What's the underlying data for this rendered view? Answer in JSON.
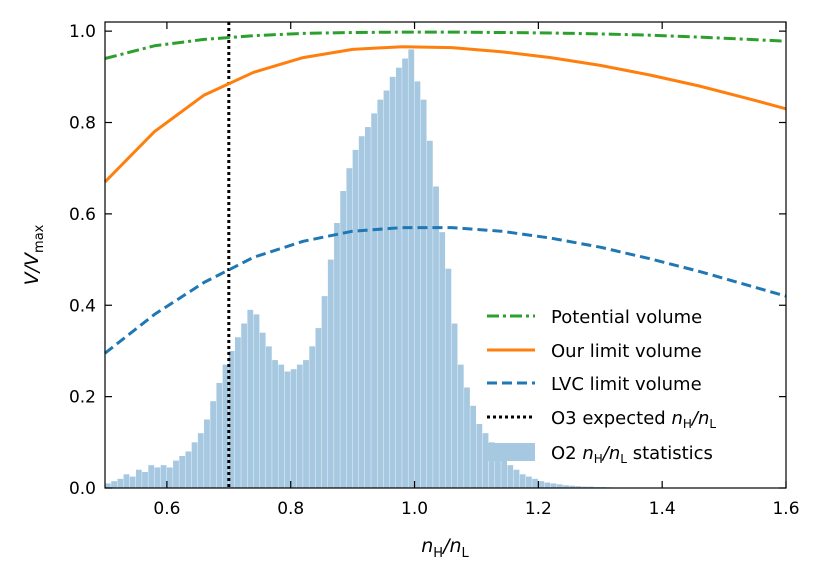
{
  "chart_data": {
    "type": "line",
    "title": "",
    "xlabel": "n_H/n_L",
    "ylabel": "V/V_max",
    "xlim": [
      0.5,
      1.6
    ],
    "ylim": [
      0.0,
      1.02
    ],
    "x_ticks": [
      0.6,
      0.8,
      1.0,
      1.2,
      1.4,
      1.6
    ],
    "x_tick_labels": [
      "0.6",
      "0.8",
      "1.0",
      "1.2",
      "1.4",
      "1.6"
    ],
    "y_ticks": [
      0.0,
      0.2,
      0.4,
      0.6,
      0.8,
      1.0
    ],
    "y_tick_labels": [
      "0.0",
      "0.2",
      "0.4",
      "0.6",
      "0.8",
      "1.0"
    ],
    "legend_position": "lower-right",
    "series": [
      {
        "name": "Potential volume",
        "style": "dashdot",
        "color": "#2ca02c",
        "x": [
          0.5,
          0.58,
          0.66,
          0.74,
          0.82,
          0.9,
          0.98,
          1.06,
          1.14,
          1.22,
          1.3,
          1.38,
          1.46,
          1.54,
          1.6
        ],
        "y": [
          0.94,
          0.968,
          0.982,
          0.99,
          0.995,
          0.997,
          0.998,
          0.998,
          0.997,
          0.996,
          0.994,
          0.991,
          0.987,
          0.982,
          0.978
        ]
      },
      {
        "name": "Our limit volume",
        "style": "solid",
        "color": "#ff7f0e",
        "x": [
          0.5,
          0.58,
          0.66,
          0.74,
          0.82,
          0.9,
          0.98,
          1.06,
          1.14,
          1.22,
          1.3,
          1.38,
          1.46,
          1.54,
          1.6
        ],
        "y": [
          0.67,
          0.78,
          0.86,
          0.91,
          0.942,
          0.96,
          0.966,
          0.964,
          0.955,
          0.942,
          0.925,
          0.904,
          0.88,
          0.852,
          0.83
        ]
      },
      {
        "name": "LVC limit volume",
        "style": "dashed",
        "color": "#1f77b4",
        "x": [
          0.5,
          0.58,
          0.66,
          0.74,
          0.82,
          0.9,
          0.98,
          1.06,
          1.14,
          1.22,
          1.3,
          1.38,
          1.46,
          1.54,
          1.6
        ],
        "y": [
          0.295,
          0.38,
          0.45,
          0.505,
          0.54,
          0.562,
          0.57,
          0.57,
          0.562,
          0.547,
          0.527,
          0.502,
          0.474,
          0.443,
          0.42
        ]
      }
    ],
    "vline": {
      "name": "O3 expected n_H/n_L",
      "x": 0.7,
      "color": "#000000",
      "style": "dotted"
    },
    "histogram": {
      "name": "O2 n_H/n_L statistics",
      "color": "#a6c8e0",
      "bin_start": 0.5,
      "bin_width": 0.01,
      "values": [
        0.01,
        0.015,
        0.02,
        0.03,
        0.025,
        0.04,
        0.035,
        0.05,
        0.045,
        0.05,
        0.045,
        0.06,
        0.07,
        0.08,
        0.1,
        0.12,
        0.15,
        0.19,
        0.23,
        0.27,
        0.3,
        0.33,
        0.36,
        0.39,
        0.38,
        0.34,
        0.31,
        0.28,
        0.27,
        0.255,
        0.26,
        0.27,
        0.28,
        0.31,
        0.35,
        0.42,
        0.5,
        0.58,
        0.65,
        0.7,
        0.74,
        0.77,
        0.79,
        0.82,
        0.85,
        0.87,
        0.9,
        0.92,
        0.94,
        0.96,
        0.89,
        0.85,
        0.76,
        0.66,
        0.56,
        0.48,
        0.36,
        0.27,
        0.22,
        0.18,
        0.14,
        0.12,
        0.1,
        0.08,
        0.06,
        0.05,
        0.04,
        0.03,
        0.025,
        0.02,
        0.015,
        0.012,
        0.01,
        0.008,
        0.006,
        0.005,
        0.004,
        0.003,
        0.003,
        0.002,
        0.002,
        0.0015,
        0.001,
        0.001,
        0.001,
        0.001,
        0.0005,
        0.0005,
        0.0005,
        0.0005
      ]
    }
  },
  "axes": {
    "xlabel_main": "n",
    "xlabel_sub1": "H",
    "xlabel_sep": "/n",
    "xlabel_sub2": "L",
    "ylabel_main": "V",
    "ylabel_sep": "/V",
    "ylabel_sub": "max"
  },
  "legend": {
    "potential": "Potential volume",
    "our_limit": "Our limit volume",
    "lvc_limit": "LVC limit volume",
    "o3_prefix": "O3 expected ",
    "o3_n1": "n",
    "o3_sub1": "H",
    "o3_sep": "/n",
    "o3_sub2": "L",
    "o2_prefix": "O2 ",
    "o2_n1": "n",
    "o2_sub1": "H",
    "o2_sep": "/n",
    "o2_sub2": "L",
    "o2_suffix": " statistics"
  }
}
